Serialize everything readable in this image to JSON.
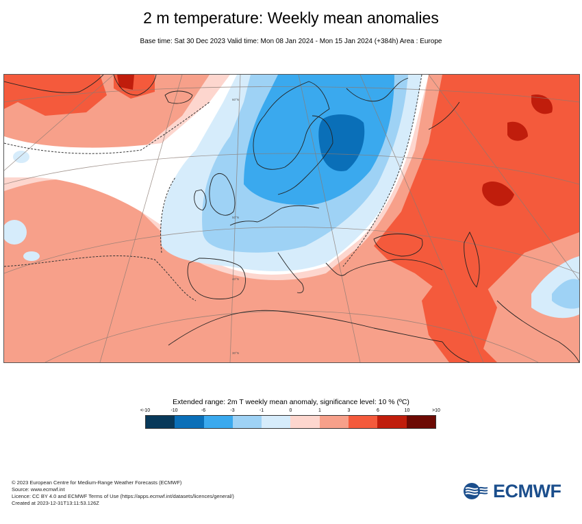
{
  "header": {
    "title": "2 m temperature: Weekly mean anomalies",
    "subtitle": "Base time: Sat 30 Dec 2023 Valid time: Mon 08 Jan 2024 - Mon 15 Jan 2024 (+384h) Area : Europe"
  },
  "map": {
    "region": "Europe",
    "graticule_labels": [
      "60°N",
      "50°N",
      "40°N",
      "30°N"
    ]
  },
  "legend": {
    "title": "Extended range: 2m T weekly mean anomaly, significance level: 10 % (ºC)",
    "tick_labels": [
      "<-10",
      "-10",
      "-6",
      "-3",
      "-1",
      "0",
      "1",
      "3",
      "6",
      "10",
      ">10"
    ],
    "colors": [
      "#08395a",
      "#0a6fb8",
      "#3aa9ee",
      "#9ed2f5",
      "#d6ecfb",
      "#fdd6ce",
      "#f7a08a",
      "#f45a3c",
      "#c01d0c",
      "#6d0a04"
    ]
  },
  "footer": {
    "line1": "© 2023 European Centre for Medium-Range Weather Forecasts (ECMWF)",
    "line2": "Source: www.ecmwf.int",
    "line3": "Licence: CC BY 4.0 and ECMWF Terms of Use (https://apps.ecmwf.int/datasets/licences/general/)",
    "line4": "Created at 2023-12-31T13:11:53.126Z"
  },
  "logo": {
    "text": "ECMWF",
    "color": "#1b4e8c"
  }
}
